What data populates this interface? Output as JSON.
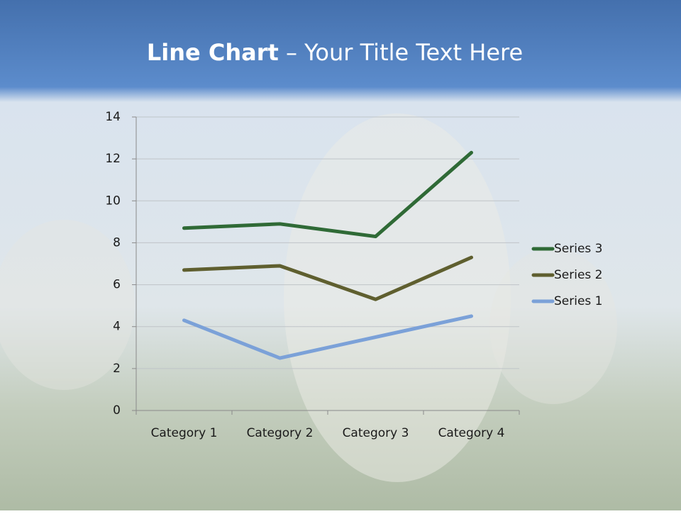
{
  "chart_data": {
    "type": "line",
    "stacked": true,
    "title_bold": "Line Chart",
    "title_rest": "– Your Title Text Here",
    "categories": [
      "Category 1",
      "Category 2",
      "Category 3",
      "Category 4"
    ],
    "series": [
      {
        "name": "Series 1",
        "color": "#7ba1d8",
        "values": [
          4.3,
          2.5,
          3.5,
          4.5
        ]
      },
      {
        "name": "Series 2",
        "color": "#5f5f2f",
        "values": [
          2.4,
          4.4,
          1.8,
          2.8
        ]
      },
      {
        "name": "Series 3",
        "color": "#2f6a36",
        "values": [
          2,
          2,
          3,
          5
        ]
      }
    ],
    "ylim": [
      0,
      14
    ],
    "yticks": [
      0,
      2,
      4,
      6,
      8,
      10,
      12,
      14
    ],
    "grid": true,
    "legend": "right"
  }
}
